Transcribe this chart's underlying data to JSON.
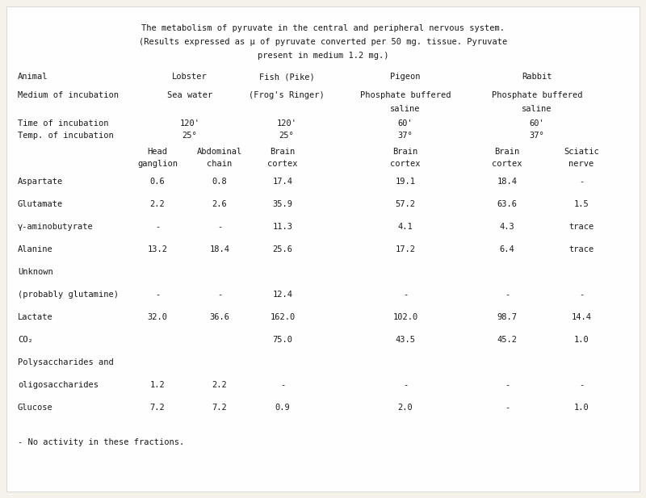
{
  "title_line1": "The metabolism of pyruvate in the central and peripheral nervous system.",
  "title_line2": "(Results expressed as μ of pyruvate converted per 50 mg. tissue. Pyruvate",
  "title_line3": "present in medium 1.2 mg.)",
  "bg_color": "#f5f2ec",
  "inner_bg": "#fafaf7",
  "text_color": "#1a1a1a",
  "font_family": "monospace",
  "footnote": "- No activity in these fractions."
}
